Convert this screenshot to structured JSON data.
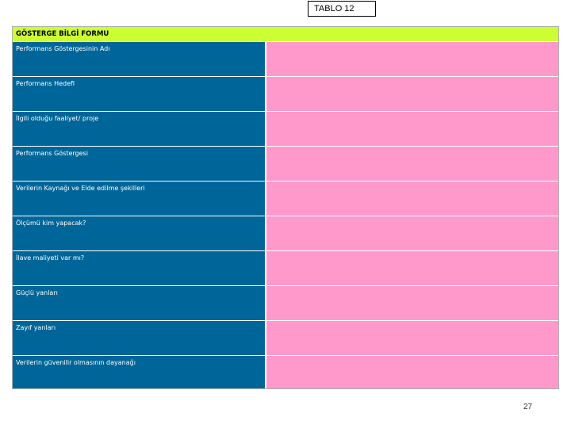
{
  "tablo_label": "TABLO 12",
  "form": {
    "title": "GÖSTERGE BİLGİ FORMU",
    "rows": [
      {
        "label": "Performans Göstergesinin Adı",
        "value": ""
      },
      {
        "label": "Performans Hedefi",
        "value": ""
      },
      {
        "label": "İlgili olduğu faaliyet/ proje",
        "value": ""
      },
      {
        "label": "Performans Göstergesi",
        "value": ""
      },
      {
        "label": "Verilerin Kaynağı ve Elde edilme şekilleri",
        "value": ""
      },
      {
        "label": "Ölçümü kim yapacak?",
        "value": ""
      },
      {
        "label": "İlave maliyeti var mı?",
        "value": ""
      },
      {
        "label": "Güçlü yanları",
        "value": ""
      },
      {
        "label": "Zayıf yanları",
        "value": ""
      },
      {
        "label": "Verilerin güvenilir olmasının dayanağı",
        "value": ""
      }
    ]
  },
  "page_number": "27",
  "colors": {
    "header_bg": "#ccff33",
    "label_bg": "#006699",
    "value_bg": "#ff99cc"
  }
}
